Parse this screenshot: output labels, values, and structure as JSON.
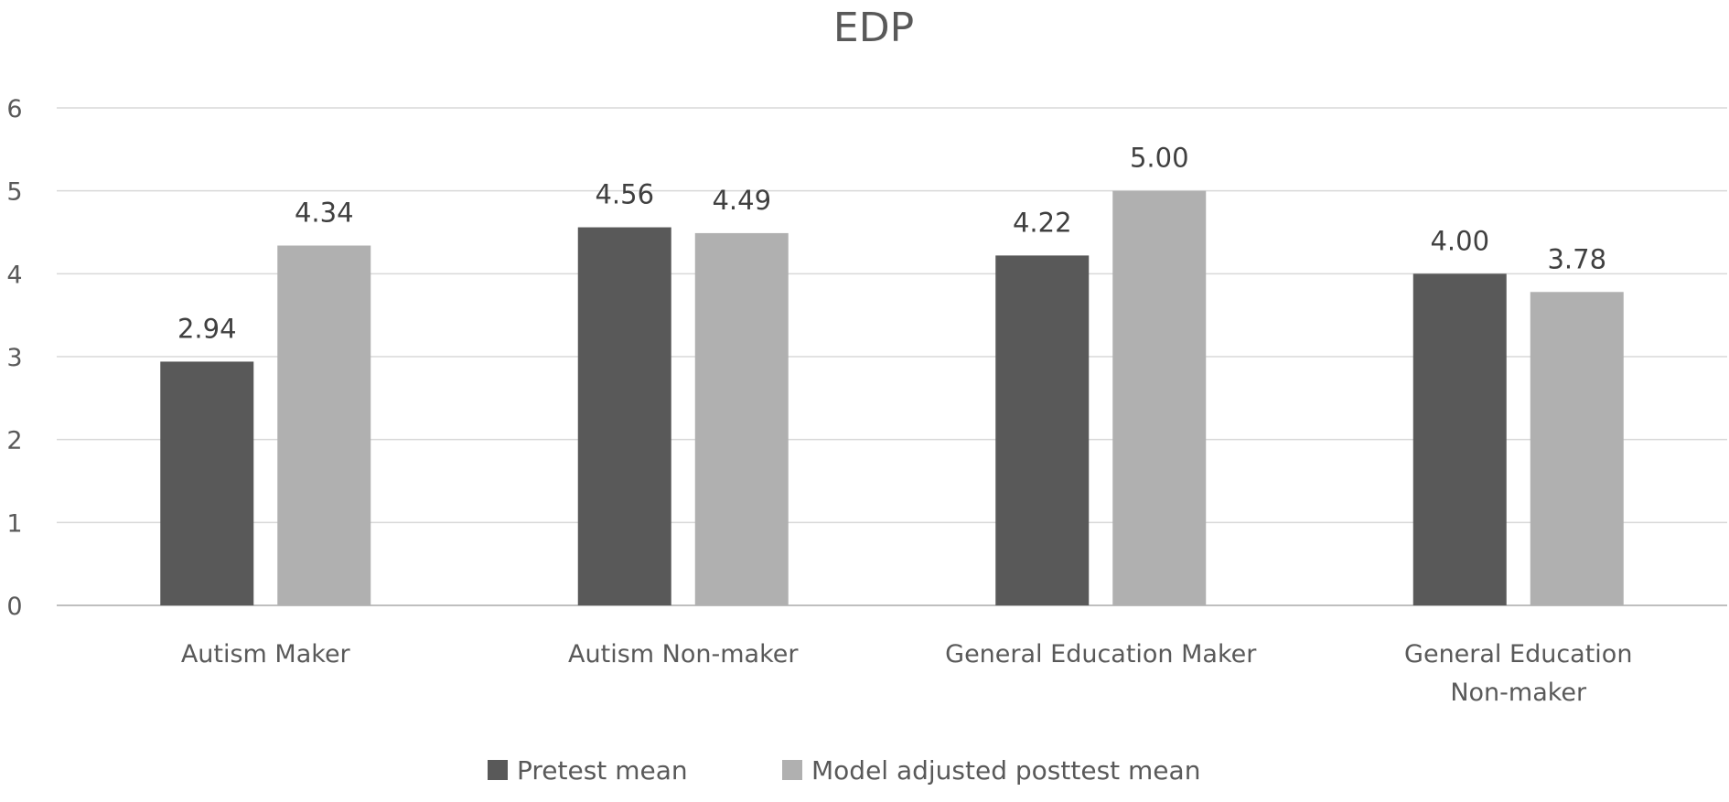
{
  "chart_data": {
    "type": "bar",
    "title": "EDP",
    "categories": [
      "Autism Maker",
      "Autism Non-maker",
      "General Education Maker",
      "General Education Non-maker"
    ],
    "series": [
      {
        "name": "Pretest mean",
        "values": [
          2.94,
          4.56,
          4.22,
          4.0
        ],
        "labels": [
          "2.94",
          "4.56",
          "4.22",
          "4.00"
        ],
        "color": "#595959"
      },
      {
        "name": "Model adjusted posttest mean",
        "values": [
          4.34,
          4.49,
          5.0,
          3.78
        ],
        "labels": [
          "4.34",
          "4.49",
          "5.00",
          "3.78"
        ],
        "color": "#b0b0b0"
      }
    ],
    "ylim": [
      0,
      6
    ],
    "yticks": [
      "0",
      "1",
      "2",
      "3",
      "4",
      "5",
      "6"
    ],
    "grid": true,
    "legend": "bottom"
  }
}
